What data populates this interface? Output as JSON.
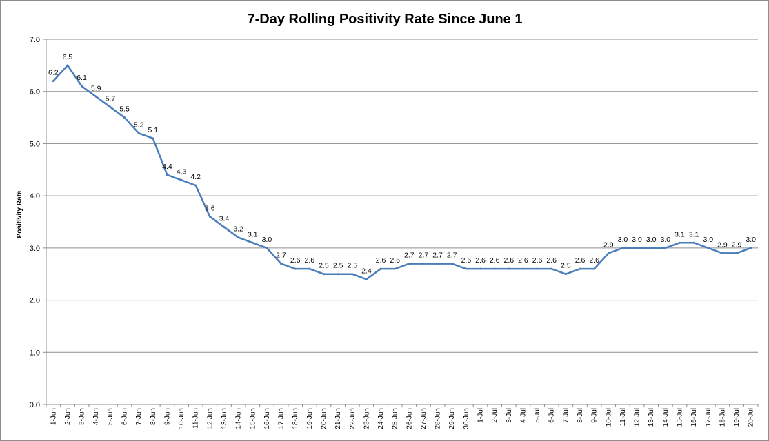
{
  "chart_data": {
    "type": "line",
    "title": "7-Day Rolling Positivity Rate Since June 1",
    "xlabel": "",
    "ylabel": "Positivity Rate",
    "ylim": [
      0,
      7
    ],
    "y_ticks": [
      "0.0",
      "1.0",
      "2.0",
      "3.0",
      "4.0",
      "5.0",
      "6.0",
      "7.0"
    ],
    "grid": true,
    "legend": "none",
    "line_color": "#4a7ebb",
    "categories": [
      "1-Jun",
      "2-Jun",
      "3-Jun",
      "4-Jun",
      "5-Jun",
      "6-Jun",
      "7-Jun",
      "8-Jun",
      "9-Jun",
      "10-Jun",
      "11-Jun",
      "12-Jun",
      "13-Jun",
      "14-Jun",
      "15-Jun",
      "16-Jun",
      "17-Jun",
      "18-Jun",
      "19-Jun",
      "20-Jun",
      "21-Jun",
      "22-Jun",
      "23-Jun",
      "24-Jun",
      "25-Jun",
      "26-Jun",
      "27-Jun",
      "28-Jun",
      "29-Jun",
      "30-Jun",
      "1-Jul",
      "2-Jul",
      "3-Jul",
      "4-Jul",
      "5-Jul",
      "6-Jul",
      "7-Jul",
      "8-Jul",
      "9-Jul",
      "10-Jul",
      "11-Jul",
      "12-Jul",
      "13-Jul",
      "14-Jul",
      "15-Jul",
      "16-Jul",
      "17-Jul",
      "18-Jul",
      "19-Jul",
      "20-Jul"
    ],
    "values": [
      6.2,
      6.5,
      6.1,
      5.9,
      5.7,
      5.5,
      5.2,
      5.1,
      4.4,
      4.3,
      4.2,
      3.6,
      3.4,
      3.2,
      3.1,
      3.0,
      2.7,
      2.6,
      2.6,
      2.5,
      2.5,
      2.5,
      2.4,
      2.6,
      2.6,
      2.7,
      2.7,
      2.7,
      2.7,
      2.6,
      2.6,
      2.6,
      2.6,
      2.6,
      2.6,
      2.6,
      2.5,
      2.6,
      2.6,
      2.9,
      3.0,
      3.0,
      3.0,
      3.0,
      3.1,
      3.1,
      3.0,
      2.9,
      2.9,
      3.0
    ]
  }
}
